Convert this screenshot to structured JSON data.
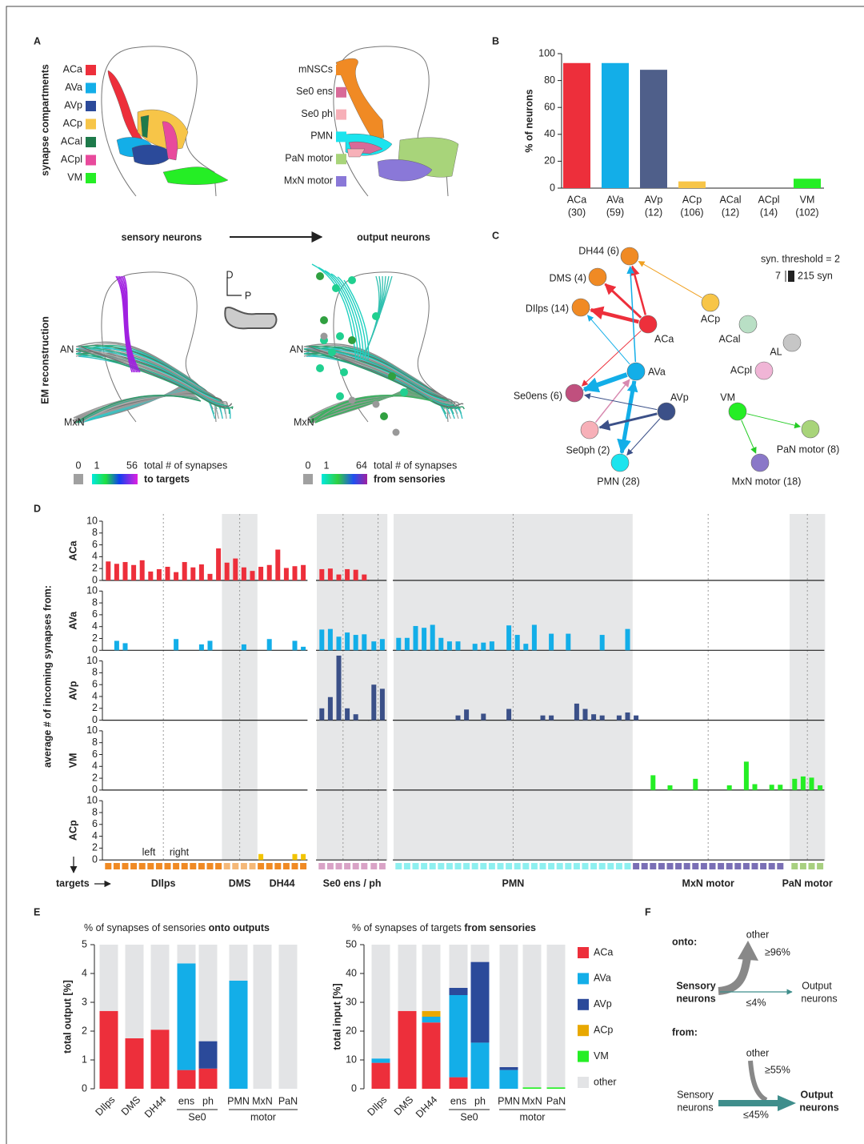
{
  "panel_a": {
    "label": "A",
    "compartments_title": "synapse compartments",
    "compartments": [
      {
        "name": "ACa",
        "color": "#ed2f3b"
      },
      {
        "name": "AVa",
        "color": "#13aee8"
      },
      {
        "name": "AVp",
        "color": "#2b4a9a"
      },
      {
        "name": "ACp",
        "color": "#f7c548"
      },
      {
        "name": "ACal",
        "color": "#1d7a4a"
      },
      {
        "name": "ACpl",
        "color": "#e84a9c"
      },
      {
        "name": "VM",
        "color": "#25ee25"
      }
    ],
    "outputs": [
      {
        "name": "mNSCs",
        "color": "#f08a24"
      },
      {
        "name": "Se0 ens",
        "color": "#d86a98"
      },
      {
        "name": "Se0 ph",
        "color": "#f7b0b8"
      },
      {
        "name": "PMN",
        "color": "#1be4ee"
      },
      {
        "name": "PaN motor",
        "color": "#a8d47a"
      },
      {
        "name": "MxN motor",
        "color": "#8a78d8"
      }
    ],
    "arrow_from": "sensory neurons",
    "arrow_to": "output neurons",
    "em_title": "EM reconstruction",
    "axis_d": "D",
    "axis_p": "P",
    "em_left": {
      "an": "AN",
      "mxn": "MxN",
      "scale_zero": 0,
      "scale_min": 1,
      "scale_max": 56,
      "scale_text": "total # of synapses",
      "scale_bold": "to targets"
    },
    "em_right": {
      "an": "AN",
      "mxn": "MxN",
      "scale_zero": 0,
      "scale_min": 1,
      "scale_max": 64,
      "scale_text": "total # of synapses",
      "scale_bold": "from sensories"
    }
  },
  "chart_data": [
    {
      "type": "bar",
      "label": "B",
      "y_label": "% of neurons",
      "categories": [
        "ACa",
        "AVa",
        "AVp",
        "ACp",
        "ACal",
        "ACpl",
        "VM"
      ],
      "category_counts": [
        "(30)",
        "(59)",
        "(12)",
        "(106)",
        "(12)",
        "(14)",
        "(102)"
      ],
      "values": [
        93,
        93,
        88,
        5,
        0,
        0,
        7
      ],
      "colors": [
        "#ed2f3b",
        "#13aee8",
        "#4f5f8a",
        "#f7c548",
        "#1d7a4a",
        "#e84a9c",
        "#25ee25"
      ],
      "ylim": [
        0,
        100
      ],
      "yticks": [
        0,
        20,
        40,
        60,
        80,
        100
      ]
    },
    {
      "type": "stacked_bar",
      "label": "E",
      "title": "% of synapses of sensories ",
      "title_bold": "onto outputs",
      "y_label": "total output [%]",
      "categories": [
        "DIlps",
        "DMS",
        "DH44",
        "ens",
        "ph",
        "PMN",
        "MxN",
        "PaN"
      ],
      "groups": [
        null,
        null,
        null,
        "Se0",
        "Se0",
        "motor",
        "motor",
        "motor"
      ],
      "ylim": [
        0,
        5
      ],
      "yticks": [
        0,
        1,
        2,
        3,
        4,
        5
      ],
      "legend": false,
      "series": [
        {
          "name": "ACa",
          "color": "#ed2f3b",
          "values": [
            2.7,
            1.75,
            2.05,
            0.65,
            0.7,
            0,
            0,
            0
          ]
        },
        {
          "name": "AVa",
          "color": "#13aee8",
          "values": [
            0,
            0,
            0,
            3.7,
            0,
            3.75,
            0,
            0
          ]
        },
        {
          "name": "AVp",
          "color": "#2b4a9a",
          "values": [
            0,
            0,
            0,
            0,
            0.95,
            0,
            0,
            0
          ]
        },
        {
          "name": "other",
          "color": "#e3e4e6",
          "values": [
            2.3,
            3.25,
            2.95,
            0.65,
            3.35,
            1.25,
            5,
            5
          ]
        }
      ]
    },
    {
      "type": "stacked_bar",
      "title": "% of synapses of targets ",
      "title_bold": "from sensories",
      "y_label": "total input [%]",
      "categories": [
        "DIlps",
        "DMS",
        "DH44",
        "ens",
        "ph",
        "PMN",
        "MxN",
        "PaN"
      ],
      "groups": [
        null,
        null,
        null,
        "Se0",
        "Se0",
        "motor",
        "motor",
        "motor"
      ],
      "ylim": [
        0,
        50
      ],
      "yticks": [
        0,
        10,
        20,
        30,
        40,
        50
      ],
      "legend": true,
      "series": [
        {
          "name": "ACa",
          "color": "#ed2f3b",
          "values": [
            9,
            27,
            23,
            4,
            0,
            0,
            0,
            0
          ]
        },
        {
          "name": "AVa",
          "color": "#13aee8",
          "values": [
            1.5,
            0,
            2,
            28.5,
            16,
            6.5,
            0,
            0
          ]
        },
        {
          "name": "AVp",
          "color": "#2b4a9a",
          "values": [
            0,
            0,
            0,
            2.5,
            28,
            1,
            0,
            0
          ]
        },
        {
          "name": "ACp",
          "color": "#e8a800",
          "values": [
            0,
            0,
            2,
            0,
            0,
            0,
            0,
            0
          ]
        },
        {
          "name": "VM",
          "color": "#25ee25",
          "values": [
            0,
            0,
            0,
            0,
            0,
            0,
            0.5,
            0.5
          ]
        },
        {
          "name": "other",
          "color": "#e3e4e6",
          "values": [
            39.5,
            23,
            23,
            15,
            6,
            42.5,
            49.5,
            49.5
          ]
        }
      ]
    }
  ],
  "panel_c": {
    "label": "C",
    "threshold": "syn. threshold = 2",
    "scale_min": 7,
    "scale_max": "215 syn",
    "nodes": [
      {
        "label": "DH44 (6)",
        "color": "#f08a24"
      },
      {
        "label": "DMS (4)",
        "color": "#f08a24"
      },
      {
        "label": "DIlps (14)",
        "color": "#f08a24"
      },
      {
        "label": "ACa",
        "color": "#ed2f3b"
      },
      {
        "label": "ACp",
        "color": "#f7c548"
      },
      {
        "label": "ACal",
        "color": "#b9dfc5"
      },
      {
        "label": "AL",
        "color": "#c6c6c6"
      },
      {
        "label": "ACpl",
        "color": "#f0b5d6"
      },
      {
        "label": "AVa",
        "color": "#13aee8"
      },
      {
        "label": "AVp",
        "color": "#3b5088"
      },
      {
        "label": "VM",
        "color": "#25ee25"
      },
      {
        "label": "Se0ens (6)",
        "color": "#c0507e"
      },
      {
        "label": "Se0ph (2)",
        "color": "#f7b0b8"
      },
      {
        "label": "PMN (28)",
        "color": "#1be4ee"
      },
      {
        "label": "PaN motor (8)",
        "color": "#a8d47a"
      },
      {
        "label": "MxN motor (18)",
        "color": "#8a78c8"
      }
    ]
  },
  "panel_d": {
    "label": "D",
    "y_label": "average # of incoming synapses from:",
    "x_label": "targets",
    "ylim": [
      0,
      10
    ],
    "yticks": [
      0,
      2,
      4,
      6,
      8,
      10
    ],
    "hemispheres": [
      "left",
      "right"
    ],
    "targets": [
      {
        "name": "DIlps",
        "color": "#f08a24"
      },
      {
        "name": "DMS",
        "color": "#f5b878"
      },
      {
        "name": "DH44",
        "color": "#f08a24"
      },
      {
        "name": "Se0 ens / ph",
        "color": "#d9a3c6"
      },
      {
        "name": null,
        "color": "#d9a3c6"
      },
      {
        "name": "PMN",
        "color": "#8ef0f0"
      },
      {
        "name": "MxN motor",
        "color": "#7a6fb5"
      },
      {
        "name": "PaN motor",
        "color": "#a8d080"
      }
    ],
    "rows": [
      {
        "name": "ACa",
        "color": "#ed2f3b",
        "values": [
          [
            3.2,
            2.8,
            3.1,
            2.6,
            3.4,
            1.5,
            1.9,
            2.3,
            1.4,
            3.1,
            2.2,
            2.7,
            1.1,
            5.4
          ],
          [
            3.0,
            3.7,
            2.2,
            1.6
          ],
          [
            2.3,
            2.6,
            5.2,
            2.1,
            2.4,
            2.6
          ],
          [
            1.9,
            2.0,
            1.0,
            1.9,
            1.8,
            1.0
          ],
          [
            0,
            0
          ],
          [
            0,
            0,
            0,
            0,
            0,
            0,
            0,
            0,
            0,
            0,
            0,
            0,
            0,
            0,
            0,
            0,
            0,
            0,
            0,
            0,
            0,
            0,
            0,
            0,
            0,
            0,
            0,
            0
          ],
          [
            0,
            0,
            0,
            0,
            0,
            0,
            0,
            0,
            0,
            0,
            0,
            0,
            0,
            0,
            0,
            0,
            0,
            0
          ],
          [
            0,
            0,
            0,
            0
          ]
        ]
      },
      {
        "name": "AVa",
        "color": "#13aee8",
        "values": [
          [
            0,
            1.6,
            1.2,
            0,
            0,
            0,
            0,
            0,
            1.9,
            0,
            0,
            1.0,
            1.6,
            0
          ],
          [
            0,
            0,
            1.0,
            0
          ],
          [
            0,
            1.9,
            0,
            0,
            1.6,
            0.6
          ],
          [
            3.5,
            3.6,
            2.3,
            3.0,
            2.6,
            2.7
          ],
          [
            1.5,
            1.9
          ],
          [
            2.1,
            2.1,
            4.1,
            3.8,
            4.3,
            2.1,
            1.5,
            1.5,
            0,
            1.1,
            1.3,
            1.5,
            0,
            4.2,
            2.6,
            1.1,
            4.3,
            0,
            2.8,
            0,
            2.8,
            0,
            0,
            0,
            2.6,
            0,
            0,
            3.6
          ],
          [
            0,
            0,
            0,
            0,
            0,
            0,
            0,
            0,
            0,
            0,
            0,
            0,
            0,
            0,
            0,
            0,
            0,
            0
          ],
          [
            0,
            0,
            0,
            0
          ]
        ]
      },
      {
        "name": "AVp",
        "color": "#3b5088",
        "values": [
          [
            0,
            0,
            0,
            0,
            0,
            0,
            0,
            0,
            0,
            0,
            0,
            0,
            0,
            0
          ],
          [
            0,
            0,
            0,
            0
          ],
          [
            0,
            0,
            0,
            0,
            0,
            0
          ],
          [
            2.0,
            3.9,
            10.9,
            2.0,
            1.0,
            0
          ],
          [
            6.0,
            5.3
          ],
          [
            0,
            0,
            0,
            0,
            0,
            0,
            0,
            0.8,
            1.8,
            0,
            1.1,
            0,
            0,
            1.9,
            0,
            0,
            0,
            0.8,
            0.8,
            0,
            0,
            2.8,
            1.9,
            1.0,
            0.8,
            0,
            0.8,
            1.3
          ],
          [
            0.8,
            0,
            0,
            0,
            0,
            0,
            0,
            0,
            0,
            0,
            0,
            0,
            0,
            0,
            0,
            0,
            0,
            0
          ],
          [
            0,
            0,
            0,
            0
          ]
        ]
      },
      {
        "name": "VM",
        "color": "#25ee25",
        "values": [
          [
            0,
            0,
            0,
            0,
            0,
            0,
            0,
            0,
            0,
            0,
            0,
            0,
            0,
            0
          ],
          [
            0,
            0,
            0,
            0
          ],
          [
            0,
            0,
            0,
            0,
            0,
            0
          ],
          [
            0,
            0,
            0,
            0,
            0,
            0
          ],
          [
            0,
            0
          ],
          [
            0,
            0,
            0,
            0,
            0,
            0,
            0,
            0,
            0,
            0,
            0,
            0,
            0,
            0,
            0,
            0,
            0,
            0,
            0,
            0,
            0,
            0,
            0,
            0,
            0,
            0,
            0,
            0
          ],
          [
            0,
            0,
            2.5,
            0,
            0.8,
            0,
            0,
            1.9,
            0,
            0,
            0,
            0.8,
            0,
            4.8,
            1.0,
            0,
            0.9,
            0.9
          ],
          [
            1.9,
            2.3,
            2.1,
            0.8
          ]
        ]
      },
      {
        "name": "ACp",
        "color": "#f2c400",
        "values": [
          [
            0,
            0,
            0,
            0,
            0,
            0,
            0,
            0,
            0,
            0,
            0,
            0,
            0,
            0
          ],
          [
            0,
            0,
            0,
            0
          ],
          [
            1.0,
            0,
            0,
            0,
            1.0,
            1.0
          ],
          [
            0,
            0,
            0,
            0,
            0,
            0
          ],
          [
            0,
            0
          ],
          [
            0,
            0,
            0,
            0,
            0,
            0,
            0,
            0,
            0,
            0,
            0,
            0,
            0,
            0,
            0,
            0,
            0,
            0,
            0,
            0,
            0,
            0,
            0,
            0,
            0,
            0,
            0,
            0
          ],
          [
            0,
            0,
            0,
            0,
            0,
            0,
            0,
            0,
            0,
            0,
            0,
            0,
            0,
            0,
            0,
            0,
            0,
            0
          ],
          [
            0,
            0,
            0,
            0
          ]
        ]
      }
    ]
  },
  "panel_f": {
    "label": "F",
    "onto": "onto:",
    "onto_other": "other",
    "onto_other_pct": "≥96%",
    "onto_sensory": [
      "Sensory",
      "neurons"
    ],
    "onto_output": [
      "Output",
      "neurons"
    ],
    "onto_pct": "≤4%",
    "from": "from:",
    "from_other": "other",
    "from_other_pct": "≥55%",
    "from_sensory": [
      "Sensory",
      "neurons"
    ],
    "from_output": [
      "Output",
      "neurons"
    ],
    "from_pct": "≤45%"
  }
}
